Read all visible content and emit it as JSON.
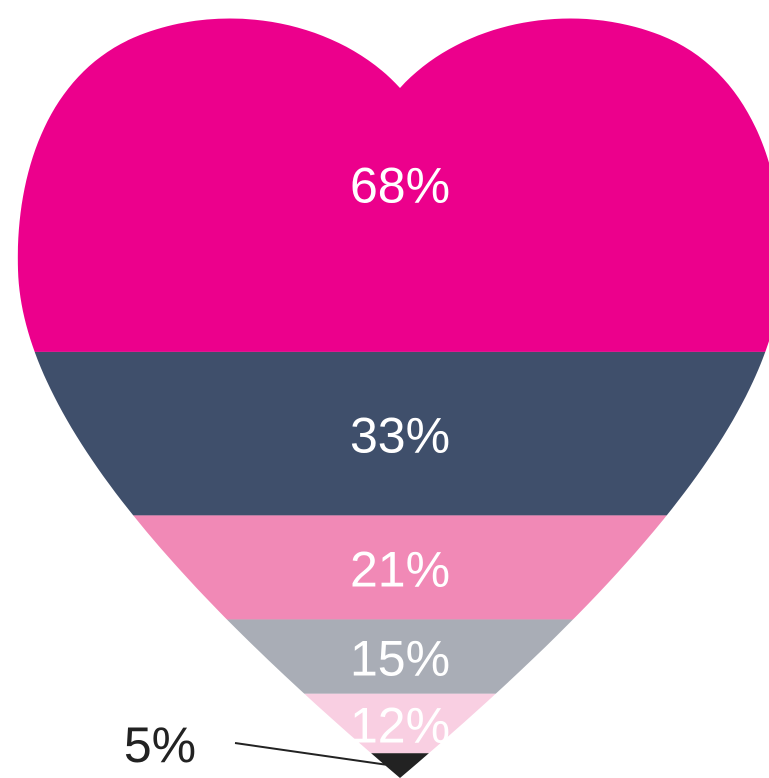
{
  "chart_data": {
    "type": "funnel",
    "values": [
      68,
      33,
      21,
      15,
      12,
      5
    ],
    "value_labels": [
      "68%",
      "33%",
      "21%",
      "15%",
      "12%",
      "5%"
    ],
    "colors": [
      "#ec008c",
      "#3f4f6b",
      "#f189b6",
      "#a9adb6",
      "#f9cfe2",
      "#222222"
    ]
  }
}
